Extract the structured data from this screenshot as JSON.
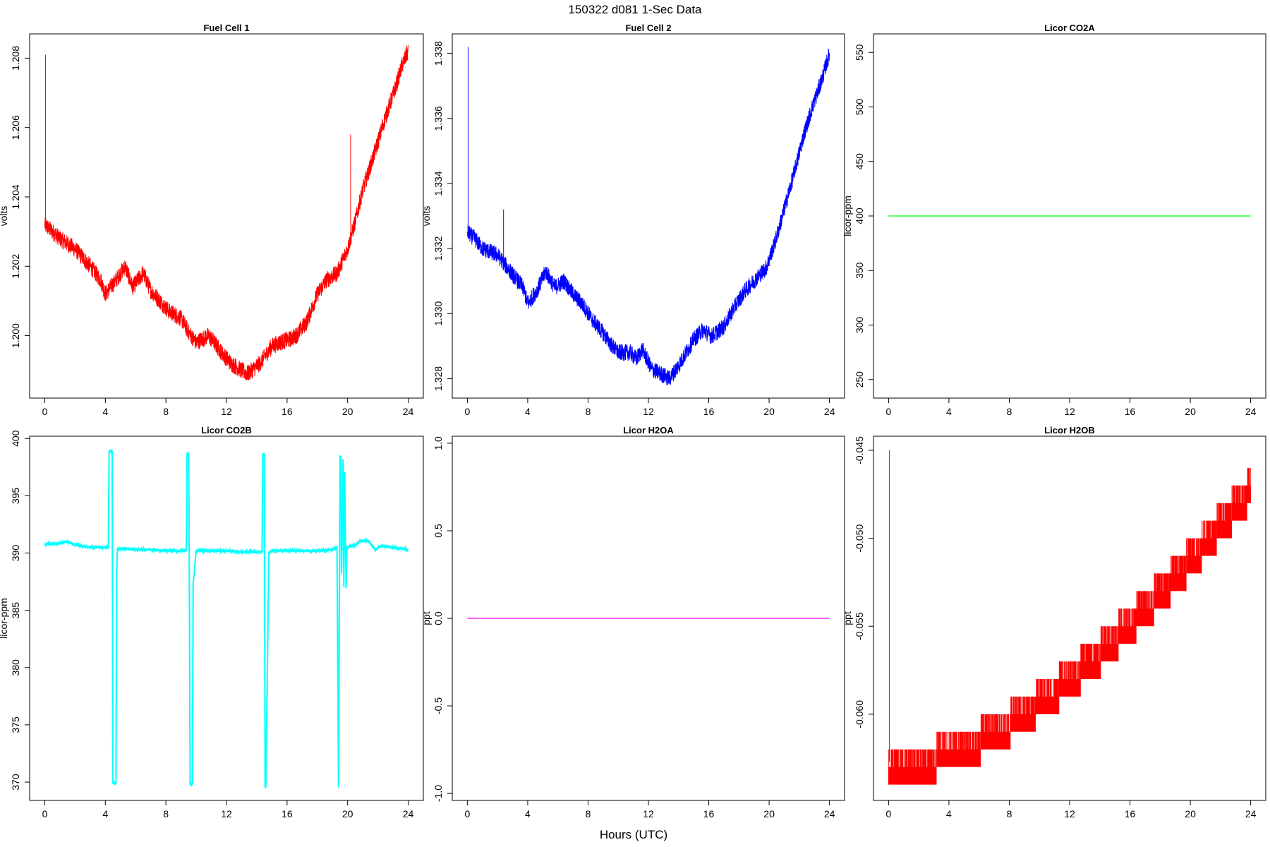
{
  "page": {
    "title": "150322   d081   1-Sec Data",
    "xlabel": "Hours (UTC)"
  },
  "chart_data": [
    {
      "id": "fc1",
      "type": "line",
      "title": "Fuel Cell 1",
      "ylabel": "volts",
      "color": "#ff0000",
      "xlim": [
        -1,
        25
      ],
      "ylim": [
        1.1982,
        1.2087
      ],
      "xticks": [
        0,
        4,
        8,
        12,
        16,
        20,
        24
      ],
      "xtick_labels": [
        "0",
        "4",
        "8",
        "12",
        "16",
        "20",
        "24"
      ],
      "yticks": [
        1.2,
        1.202,
        1.204,
        1.206,
        1.208
      ],
      "ytick_labels": [
        "1.200",
        "1.202",
        "1.204",
        "1.206",
        "1.208"
      ],
      "noise": 0.00024,
      "x": [
        0,
        0.5,
        1,
        2,
        3,
        3.7,
        4,
        4.7,
        5.3,
        5.8,
        6.5,
        7,
        7.6,
        8.2,
        9,
        9.5,
        10,
        10.8,
        11.2,
        11.7,
        12.3,
        13,
        13.4,
        14.2,
        15,
        15.5,
        16.2,
        16.6,
        17.3,
        18,
        18.6,
        19.3,
        20,
        20.5,
        21,
        21.8,
        22.5,
        23.2,
        23.6,
        24
      ],
      "y": [
        1.2032,
        1.203,
        1.2028,
        1.2025,
        1.202,
        1.2016,
        1.2012,
        1.2016,
        1.202,
        1.2014,
        1.2018,
        1.2013,
        1.201,
        1.2007,
        1.2005,
        1.2001,
        1.1998,
        1.2,
        1.1998,
        1.1995,
        1.1992,
        1.199,
        1.1989,
        1.1992,
        1.1997,
        1.1998,
        1.1999,
        1.2,
        1.2004,
        1.2012,
        1.2016,
        1.2018,
        1.2025,
        1.2033,
        1.2042,
        1.2053,
        1.2063,
        1.2072,
        1.2078,
        1.2082
      ],
      "spikes": [
        {
          "x": 0.05,
          "y": 1.2081
        },
        {
          "x": 20.2,
          "y": 1.2058
        }
      ]
    },
    {
      "id": "fc2",
      "type": "line",
      "title": "Fuel Cell 2",
      "ylabel": "volts",
      "color": "#0000ff",
      "xlim": [
        -1,
        25
      ],
      "ylim": [
        1.3274,
        1.3386
      ],
      "xticks": [
        0,
        4,
        8,
        12,
        16,
        20,
        24
      ],
      "xtick_labels": [
        "0",
        "4",
        "8",
        "12",
        "16",
        "20",
        "24"
      ],
      "yticks": [
        1.328,
        1.33,
        1.332,
        1.334,
        1.336,
        1.338
      ],
      "ytick_labels": [
        "1.328",
        "1.330",
        "1.332",
        "1.334",
        "1.336",
        "1.338"
      ],
      "noise": 0.00025,
      "x": [
        0,
        0.5,
        1,
        2,
        3,
        3.7,
        4,
        4.6,
        5.2,
        5.8,
        6.4,
        7,
        7.6,
        8.3,
        9,
        9.6,
        10,
        10.8,
        11.2,
        11.6,
        12.2,
        13,
        13.4,
        14,
        14.5,
        15,
        15.6,
        16.2,
        17,
        17.7,
        18.4,
        19,
        19.8,
        20.4,
        21,
        21.7,
        22.3,
        22.9,
        23.5,
        24
      ],
      "y": [
        1.3325,
        1.3323,
        1.332,
        1.3318,
        1.3312,
        1.3308,
        1.3303,
        1.3307,
        1.3313,
        1.3308,
        1.331,
        1.3306,
        1.3303,
        1.3298,
        1.3294,
        1.329,
        1.3288,
        1.3288,
        1.3286,
        1.3289,
        1.3283,
        1.3281,
        1.328,
        1.3284,
        1.3288,
        1.3292,
        1.3295,
        1.3293,
        1.3296,
        1.3302,
        1.3307,
        1.331,
        1.3314,
        1.3322,
        1.3332,
        1.3344,
        1.3355,
        1.3364,
        1.3372,
        1.338
      ],
      "spikes": [
        {
          "x": 0.05,
          "y": 1.3382
        },
        {
          "x": 2.4,
          "y": 1.3332
        }
      ]
    },
    {
      "id": "co2a",
      "type": "line",
      "title": "Licor CO2A",
      "ylabel": "licor-ppm",
      "color": "#00ff00",
      "xlim": [
        -1,
        25
      ],
      "ylim": [
        233,
        567
      ],
      "xticks": [
        0,
        4,
        8,
        12,
        16,
        20,
        24
      ],
      "xtick_labels": [
        "0",
        "4",
        "8",
        "12",
        "16",
        "20",
        "24"
      ],
      "yticks": [
        250,
        300,
        350,
        400,
        450,
        500,
        550
      ],
      "ytick_labels": [
        "250",
        "300",
        "350",
        "400",
        "450",
        "500",
        "550"
      ],
      "noise": 0,
      "x": [
        0,
        24
      ],
      "y": [
        400,
        400
      ],
      "spikes": []
    },
    {
      "id": "co2b",
      "type": "line",
      "title": "Licor CO2B",
      "ylabel": "licor-ppm",
      "color": "#00ffff",
      "xlim": [
        -1,
        25
      ],
      "ylim": [
        368.4,
        400.2
      ],
      "xticks": [
        0,
        4,
        8,
        12,
        16,
        20,
        24
      ],
      "xtick_labels": [
        "0",
        "4",
        "8",
        "12",
        "16",
        "20",
        "24"
      ],
      "yticks": [
        370,
        375,
        380,
        385,
        390,
        395,
        400
      ],
      "ytick_labels": [
        "370",
        "375",
        "380",
        "385",
        "390",
        "395",
        "400"
      ],
      "noise": 0.1,
      "x": [
        0,
        0.8,
        1.5,
        2,
        3,
        4.2,
        4.25,
        4.3,
        4.45,
        4.5,
        4.55,
        4.7,
        4.75,
        4.8,
        5.2,
        6,
        7,
        8,
        9,
        9.35,
        9.4,
        9.5,
        9.55,
        9.6,
        9.75,
        9.8,
        10,
        11,
        12,
        13,
        14,
        14.35,
        14.4,
        14.5,
        14.55,
        14.6,
        14.8,
        15,
        16,
        17,
        18,
        19,
        19.3,
        19.4,
        19.5,
        19.55,
        19.6,
        19.7,
        19.75,
        19.8,
        19.9,
        19.95,
        20.1,
        20.5,
        20.9,
        21.4,
        21.8,
        22.2,
        23,
        23.6,
        24
      ],
      "y": [
        390.8,
        390.8,
        391.0,
        390.7,
        390.5,
        390.5,
        398.9,
        398.9,
        398.9,
        369.9,
        369.9,
        369.9,
        388.4,
        390.4,
        390.4,
        390.3,
        390.3,
        390.2,
        390.2,
        390.2,
        398.7,
        398.7,
        387.2,
        369.8,
        369.8,
        387.3,
        390.2,
        390.2,
        390.2,
        390.1,
        390.1,
        390.1,
        398.6,
        398.6,
        369.6,
        369.6,
        390.1,
        390.2,
        390.2,
        390.2,
        390.2,
        390.3,
        390.5,
        369.5,
        398.5,
        398.5,
        388.2,
        398.2,
        387.0,
        397.0,
        387.0,
        390.4,
        390.6,
        390.7,
        391.1,
        391.0,
        390.3,
        390.6,
        390.5,
        390.4,
        390.3
      ],
      "spikes": []
    },
    {
      "id": "h2oa",
      "type": "line",
      "title": "Licor H2OA",
      "ylabel": "ppt",
      "color": "#ff00ff",
      "xlim": [
        -1,
        25
      ],
      "ylim": [
        -1.04,
        1.04
      ],
      "xticks": [
        0,
        4,
        8,
        12,
        16,
        20,
        24
      ],
      "xtick_labels": [
        "0",
        "4",
        "8",
        "12",
        "16",
        "20",
        "24"
      ],
      "yticks": [
        -1.0,
        -0.5,
        0.0,
        0.5,
        1.0
      ],
      "ytick_labels": [
        "-1.0",
        "-0.5",
        "0.0",
        "0.5",
        "1.0"
      ],
      "noise": 0,
      "x": [
        0,
        24
      ],
      "y": [
        0,
        0
      ],
      "spikes": []
    },
    {
      "id": "h2ob",
      "type": "line",
      "title": "Licor H2OB",
      "ylabel": "ppt",
      "color": "#ff0000",
      "xlim": [
        -1,
        25
      ],
      "ylim": [
        -0.0649,
        -0.0442
      ],
      "xticks": [
        0,
        4,
        8,
        12,
        16,
        20,
        24
      ],
      "xtick_labels": [
        "0",
        "4",
        "8",
        "12",
        "16",
        "20",
        "24"
      ],
      "yticks": [
        -0.06,
        -0.055,
        -0.05,
        -0.045
      ],
      "ytick_labels": [
        "-0.060",
        "-0.055",
        "-0.050",
        "-0.045"
      ],
      "noise": 0,
      "quantized": true,
      "step": 0.001,
      "band": 0.0015,
      "x": [
        0,
        2,
        4,
        6,
        8,
        10,
        12,
        14,
        16,
        18,
        20,
        22,
        24
      ],
      "y": [
        -0.0627,
        -0.0626,
        -0.062,
        -0.0613,
        -0.0603,
        -0.0591,
        -0.0578,
        -0.0563,
        -0.0546,
        -0.0529,
        -0.051,
        -0.049,
        -0.047
      ],
      "spikes": [
        {
          "x": 0.05,
          "y": -0.045
        }
      ]
    }
  ]
}
